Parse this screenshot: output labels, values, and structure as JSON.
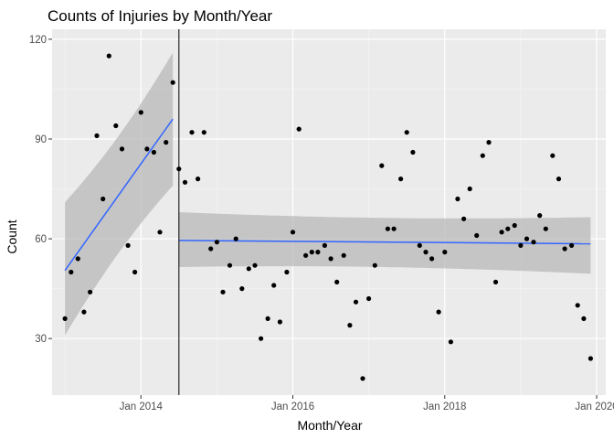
{
  "chart_data": {
    "type": "scatter",
    "title": "Counts of Injuries by Month/Year",
    "xlabel": "Month/Year",
    "ylabel": "Count",
    "xlim": [
      2012.83,
      2020.12
    ],
    "ylim": [
      13,
      123
    ],
    "x_ticks": [
      {
        "value": 2014,
        "label": "Jan 2014"
      },
      {
        "value": 2016,
        "label": "Jan 2016"
      },
      {
        "value": 2018,
        "label": "Jan 2018"
      },
      {
        "value": 2020,
        "label": "Jan 2020"
      }
    ],
    "y_ticks": [
      {
        "value": 30,
        "label": "30"
      },
      {
        "value": 60,
        "label": "60"
      },
      {
        "value": 90,
        "label": "90"
      },
      {
        "value": 120,
        "label": "120"
      }
    ],
    "grid": true,
    "points": [
      {
        "x": 2013.0,
        "y": 36
      },
      {
        "x": 2013.08,
        "y": 50
      },
      {
        "x": 2013.17,
        "y": 54
      },
      {
        "x": 2013.25,
        "y": 38
      },
      {
        "x": 2013.33,
        "y": 44
      },
      {
        "x": 2013.42,
        "y": 91
      },
      {
        "x": 2013.5,
        "y": 72
      },
      {
        "x": 2013.58,
        "y": 115
      },
      {
        "x": 2013.67,
        "y": 94
      },
      {
        "x": 2013.75,
        "y": 87
      },
      {
        "x": 2013.83,
        "y": 58
      },
      {
        "x": 2013.92,
        "y": 50
      },
      {
        "x": 2014.0,
        "y": 98
      },
      {
        "x": 2014.08,
        "y": 87
      },
      {
        "x": 2014.17,
        "y": 86
      },
      {
        "x": 2014.25,
        "y": 62
      },
      {
        "x": 2014.33,
        "y": 89
      },
      {
        "x": 2014.42,
        "y": 107
      },
      {
        "x": 2014.5,
        "y": 81
      },
      {
        "x": 2014.58,
        "y": 77
      },
      {
        "x": 2014.67,
        "y": 92
      },
      {
        "x": 2014.75,
        "y": 78
      },
      {
        "x": 2014.83,
        "y": 92
      },
      {
        "x": 2014.92,
        "y": 57
      },
      {
        "x": 2015.0,
        "y": 59
      },
      {
        "x": 2015.08,
        "y": 44
      },
      {
        "x": 2015.17,
        "y": 52
      },
      {
        "x": 2015.25,
        "y": 60
      },
      {
        "x": 2015.33,
        "y": 45
      },
      {
        "x": 2015.42,
        "y": 51
      },
      {
        "x": 2015.5,
        "y": 52
      },
      {
        "x": 2015.58,
        "y": 30
      },
      {
        "x": 2015.67,
        "y": 36
      },
      {
        "x": 2015.75,
        "y": 46
      },
      {
        "x": 2015.83,
        "y": 35
      },
      {
        "x": 2015.92,
        "y": 50
      },
      {
        "x": 2016.0,
        "y": 62
      },
      {
        "x": 2016.08,
        "y": 93
      },
      {
        "x": 2016.17,
        "y": 55
      },
      {
        "x": 2016.25,
        "y": 56
      },
      {
        "x": 2016.33,
        "y": 56
      },
      {
        "x": 2016.42,
        "y": 58
      },
      {
        "x": 2016.5,
        "y": 54
      },
      {
        "x": 2016.58,
        "y": 47
      },
      {
        "x": 2016.67,
        "y": 55
      },
      {
        "x": 2016.75,
        "y": 34
      },
      {
        "x": 2016.83,
        "y": 41
      },
      {
        "x": 2016.92,
        "y": 18
      },
      {
        "x": 2017.0,
        "y": 42
      },
      {
        "x": 2017.08,
        "y": 52
      },
      {
        "x": 2017.17,
        "y": 82
      },
      {
        "x": 2017.25,
        "y": 63
      },
      {
        "x": 2017.33,
        "y": 63
      },
      {
        "x": 2017.42,
        "y": 78
      },
      {
        "x": 2017.5,
        "y": 92
      },
      {
        "x": 2017.58,
        "y": 86
      },
      {
        "x": 2017.67,
        "y": 58
      },
      {
        "x": 2017.75,
        "y": 56
      },
      {
        "x": 2017.83,
        "y": 54
      },
      {
        "x": 2017.92,
        "y": 38
      },
      {
        "x": 2018.0,
        "y": 56
      },
      {
        "x": 2018.08,
        "y": 29
      },
      {
        "x": 2018.17,
        "y": 72
      },
      {
        "x": 2018.25,
        "y": 66
      },
      {
        "x": 2018.33,
        "y": 75
      },
      {
        "x": 2018.42,
        "y": 61
      },
      {
        "x": 2018.5,
        "y": 85
      },
      {
        "x": 2018.58,
        "y": 89
      },
      {
        "x": 2018.67,
        "y": 47
      },
      {
        "x": 2018.75,
        "y": 62
      },
      {
        "x": 2018.83,
        "y": 63
      },
      {
        "x": 2018.92,
        "y": 64
      },
      {
        "x": 2019.0,
        "y": 58
      },
      {
        "x": 2019.08,
        "y": 60
      },
      {
        "x": 2019.17,
        "y": 59
      },
      {
        "x": 2019.25,
        "y": 67
      },
      {
        "x": 2019.33,
        "y": 63
      },
      {
        "x": 2019.42,
        "y": 85
      },
      {
        "x": 2019.5,
        "y": 78
      },
      {
        "x": 2019.58,
        "y": 57
      },
      {
        "x": 2019.67,
        "y": 58
      },
      {
        "x": 2019.75,
        "y": 40
      },
      {
        "x": 2019.83,
        "y": 36
      },
      {
        "x": 2019.92,
        "y": 24
      }
    ],
    "vline": {
      "x": 2014.5
    },
    "fits": [
      {
        "x": [
          2013.0,
          2014.42
        ],
        "y": [
          50.5,
          96
        ],
        "ci_lower": [
          31,
          76
        ],
        "ci_upper": [
          71,
          116
        ]
      },
      {
        "x": [
          2014.5,
          2019.92
        ],
        "y": [
          59.5,
          58.5
        ],
        "ci_lower": [
          51.5,
          49.5
        ],
        "ci_upper": [
          68,
          66.5
        ]
      }
    ],
    "colors": {
      "panel": "#ebebeb",
      "grid_major": "#ffffff",
      "grid_minor": "#f3f3f3",
      "point": "#000000",
      "fit_line": "#3366ff",
      "ci_band": "#b8b8b8",
      "vline": "#000000"
    }
  }
}
